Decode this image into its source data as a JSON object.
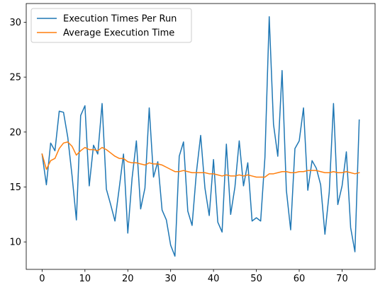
{
  "chart_data": {
    "type": "line",
    "title": "",
    "xlabel": "",
    "ylabel": "",
    "xlim": [
      -3.7,
      77.7
    ],
    "ylim": [
      7.5,
      31.7
    ],
    "xticks": [
      0,
      10,
      20,
      30,
      40,
      50,
      60,
      70
    ],
    "yticks": [
      10,
      15,
      20,
      25,
      30
    ],
    "grid": false,
    "legend_position": "upper left",
    "x": [
      0,
      1,
      2,
      3,
      4,
      5,
      6,
      7,
      8,
      9,
      10,
      11,
      12,
      13,
      14,
      15,
      16,
      17,
      18,
      19,
      20,
      21,
      22,
      23,
      24,
      25,
      26,
      27,
      28,
      29,
      30,
      31,
      32,
      33,
      34,
      35,
      36,
      37,
      38,
      39,
      40,
      41,
      42,
      43,
      44,
      45,
      46,
      47,
      48,
      49,
      50,
      51,
      52,
      53,
      54,
      55,
      56,
      57,
      58,
      59,
      60,
      61,
      62,
      63,
      64,
      65,
      66,
      67,
      68,
      69,
      70,
      71,
      72,
      73,
      74
    ],
    "series": [
      {
        "name": "Execution Times Per Run",
        "color": "#1f77b4",
        "values": [
          18.0,
          15.2,
          19.0,
          18.3,
          21.9,
          21.8,
          19.5,
          16.0,
          12.0,
          21.5,
          22.4,
          15.1,
          18.8,
          18.0,
          22.6,
          14.8,
          13.4,
          11.9,
          14.9,
          18.0,
          10.8,
          15.8,
          19.2,
          13.0,
          14.9,
          22.2,
          15.9,
          17.3,
          12.9,
          12.0,
          9.7,
          8.7,
          17.8,
          19.1,
          12.8,
          11.5,
          16.3,
          19.7,
          14.9,
          12.4,
          17.5,
          11.8,
          10.9,
          18.9,
          12.5,
          15.0,
          19.2,
          15.1,
          17.2,
          11.9,
          12.2,
          11.9,
          17.7,
          30.5,
          20.7,
          17.8,
          25.6,
          14.7,
          11.1,
          18.5,
          19.2,
          22.2,
          14.7,
          17.4,
          16.7,
          15.2,
          10.7,
          14.5,
          22.6,
          13.4,
          15.1,
          18.2,
          11.3,
          9.1,
          21.1
        ]
      },
      {
        "name": "Average Execution Time",
        "color": "#ff7f0e",
        "values": [
          18.0,
          16.6,
          17.4,
          17.6,
          18.5,
          19.0,
          19.1,
          18.7,
          17.9,
          18.3,
          18.6,
          18.4,
          18.4,
          18.3,
          18.6,
          18.4,
          18.1,
          17.8,
          17.6,
          17.6,
          17.3,
          17.2,
          17.2,
          17.1,
          17.0,
          17.2,
          17.1,
          17.1,
          17.0,
          16.8,
          16.6,
          16.4,
          16.4,
          16.5,
          16.4,
          16.3,
          16.3,
          16.3,
          16.3,
          16.2,
          16.2,
          16.1,
          16.0,
          16.1,
          16.0,
          16.0,
          16.1,
          16.0,
          16.1,
          16.0,
          15.9,
          15.9,
          15.9,
          16.2,
          16.2,
          16.3,
          16.4,
          16.4,
          16.3,
          16.3,
          16.4,
          16.4,
          16.5,
          16.5,
          16.5,
          16.4,
          16.3,
          16.3,
          16.4,
          16.3,
          16.3,
          16.4,
          16.3,
          16.2,
          16.3
        ]
      }
    ]
  }
}
